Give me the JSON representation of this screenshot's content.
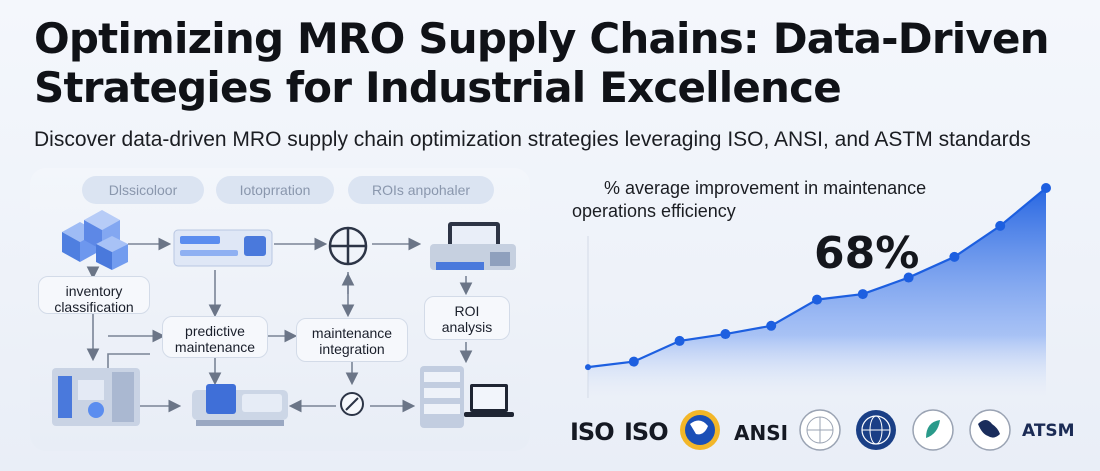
{
  "title": "Optimizing MRO Supply Chains: Data-Driven Strategies for Industrial Excellence",
  "subtitle": "Discover data-driven MRO supply chain optimization strategies leveraging ISO, ANSI, and ASTM standards",
  "diagram": {
    "tabs": [
      "Dlssicoloor",
      "Iotoprration",
      "ROIs anpohaler"
    ],
    "nodes": {
      "inventory": [
        "inventory",
        "classification"
      ],
      "predictive": [
        "predictive",
        "maintenance"
      ],
      "integration": [
        "maintenance",
        "integration"
      ],
      "roi": [
        "ROI",
        "analysis"
      ]
    },
    "icons": [
      "cube-stack-icon",
      "dashboard-panel-icon",
      "crosshair-icon",
      "printer-machine-icon",
      "factory-machine-icon",
      "conveyor-machine-icon",
      "gauge-icon",
      "server-laptop-icon"
    ]
  },
  "stat": {
    "label_line1": "% average improvement in maintenance",
    "label_line2": "operations efficiency",
    "value": "68%"
  },
  "chart_data": {
    "type": "area",
    "x": [
      1,
      2,
      3,
      4,
      5,
      6,
      7,
      8,
      9,
      10,
      11
    ],
    "y": [
      10,
      18,
      48,
      58,
      70,
      108,
      116,
      140,
      170,
      215,
      270
    ],
    "color": "#1d5fe0",
    "grid": false
  },
  "logos": {
    "iso1": "ISO",
    "iso2": "ISO",
    "ansi": "ANSI",
    "astm": "ATSM"
  },
  "colors": {
    "accent": "#1d5fe0",
    "icon_blue": "#5b8def",
    "box_border": "#d3dbe8"
  }
}
